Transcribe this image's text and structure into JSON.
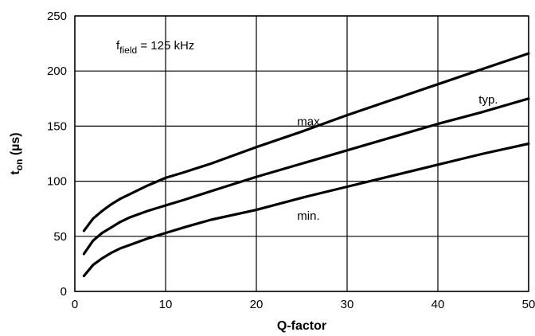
{
  "chart_data": {
    "type": "line",
    "title": "",
    "xlabel": "Q-factor",
    "ylabel_main": "t",
    "ylabel_sub": "on",
    "ylabel_unit": " (µs)",
    "xlim": [
      0,
      50
    ],
    "ylim": [
      0,
      250
    ],
    "x_ticks": [
      0,
      10,
      20,
      30,
      40,
      50
    ],
    "y_ticks": [
      0,
      50,
      100,
      150,
      200,
      250
    ],
    "grid": true,
    "annotation": {
      "main": "f",
      "sub": "field",
      "rest": " = 125 kHz"
    },
    "series": [
      {
        "name": "max.",
        "x": [
          1,
          2,
          3,
          4,
          5,
          6,
          8,
          10,
          12,
          15,
          20,
          25,
          30,
          35,
          40,
          45,
          50
        ],
        "values": [
          55,
          66,
          73,
          79,
          84,
          88,
          96,
          103,
          108,
          116,
          131,
          145,
          160,
          174,
          188,
          202,
          216
        ]
      },
      {
        "name": "typ.",
        "x": [
          1,
          2,
          3,
          4,
          5,
          6,
          8,
          10,
          12,
          15,
          20,
          25,
          30,
          35,
          40,
          45,
          50
        ],
        "values": [
          34,
          46,
          53,
          58,
          63,
          67,
          73,
          78,
          83,
          91,
          104,
          116,
          128,
          140,
          152,
          163,
          175
        ]
      },
      {
        "name": "min.",
        "x": [
          1,
          2,
          3,
          4,
          5,
          6,
          8,
          10,
          12,
          15,
          20,
          25,
          30,
          35,
          40,
          45,
          50
        ],
        "values": [
          14,
          24,
          30,
          35,
          39,
          42,
          48,
          53,
          58,
          65,
          74,
          85,
          95,
          105,
          115,
          125,
          134
        ]
      }
    ]
  }
}
